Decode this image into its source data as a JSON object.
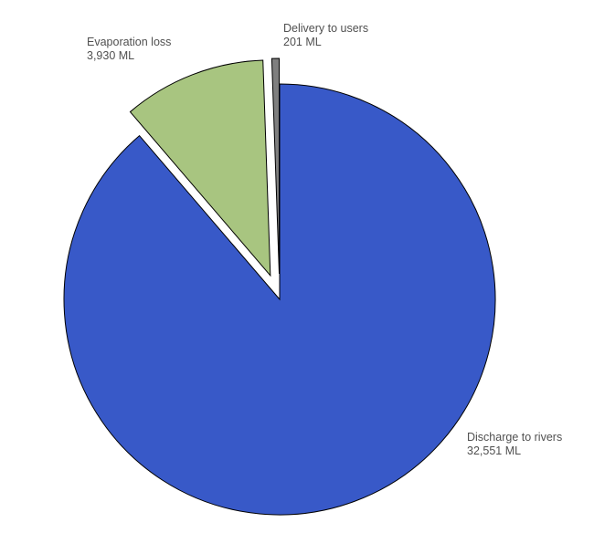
{
  "chart_data": {
    "type": "pie",
    "unit": "ML",
    "exploded": true,
    "legend": "none",
    "slices": [
      {
        "label": "Discharge to rivers",
        "value": 32551,
        "value_label": "32,551 ML",
        "color": "#3859C8"
      },
      {
        "label": "Evaporation loss",
        "value": 3930,
        "value_label": "3,930 ML",
        "color": "#A8C580"
      },
      {
        "label": "Delivery to users",
        "value": 201,
        "value_label": "201 ML",
        "color": "#7F7F7F"
      }
    ]
  }
}
